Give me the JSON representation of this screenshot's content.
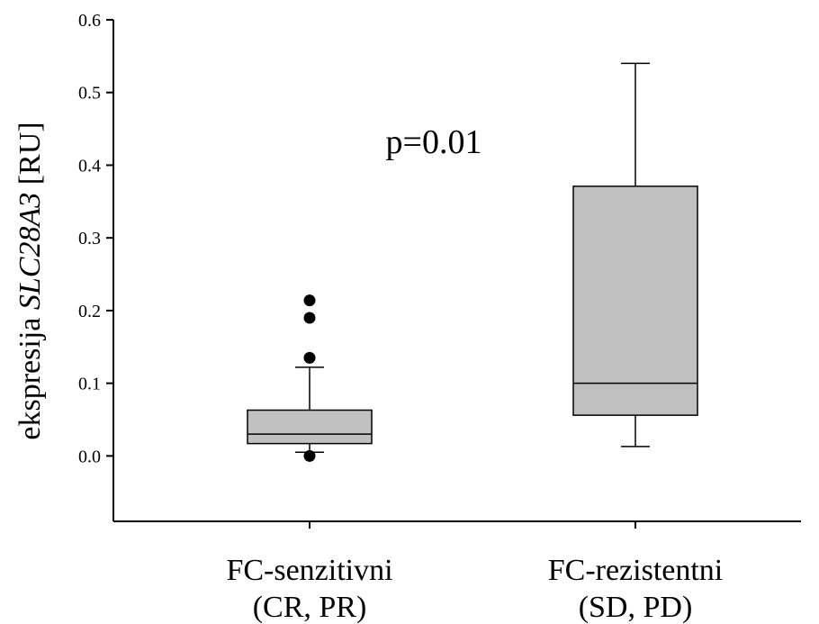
{
  "chart_data": {
    "type": "box",
    "title": "",
    "ylabel": {
      "prefix": "ekspresija ",
      "gene": "SLC28A3",
      "suffix": " [RU]"
    },
    "ylim": [
      -0.09,
      0.6
    ],
    "yticks": [
      {
        "value": 0.0,
        "label": "0.0"
      },
      {
        "value": 0.1,
        "label": "0.1"
      },
      {
        "value": 0.2,
        "label": "0.2"
      },
      {
        "value": 0.3,
        "label": "0.3"
      },
      {
        "value": 0.4,
        "label": "0.4"
      },
      {
        "value": 0.5,
        "label": "0.5"
      },
      {
        "value": 0.6,
        "label": "0.6"
      }
    ],
    "annotation": "p=0.01",
    "groups": [
      {
        "label_line1": "FC-senzitivni",
        "label_line2": "(CR, PR)",
        "whisker_low": 0.005,
        "q1": 0.017,
        "median": 0.03,
        "q3": 0.063,
        "whisker_high": 0.122,
        "outliers": [
          0.0,
          0.135,
          0.19,
          0.214
        ],
        "fill": "#c0c0c0"
      },
      {
        "label_line1": "FC-rezistentni",
        "label_line2": "(SD, PD)",
        "whisker_low": 0.013,
        "q1": 0.056,
        "median": 0.1,
        "q3": 0.371,
        "whisker_high": 0.54,
        "outliers": [],
        "fill": "#c0c0c0"
      }
    ],
    "grid": false,
    "legend": "none"
  }
}
